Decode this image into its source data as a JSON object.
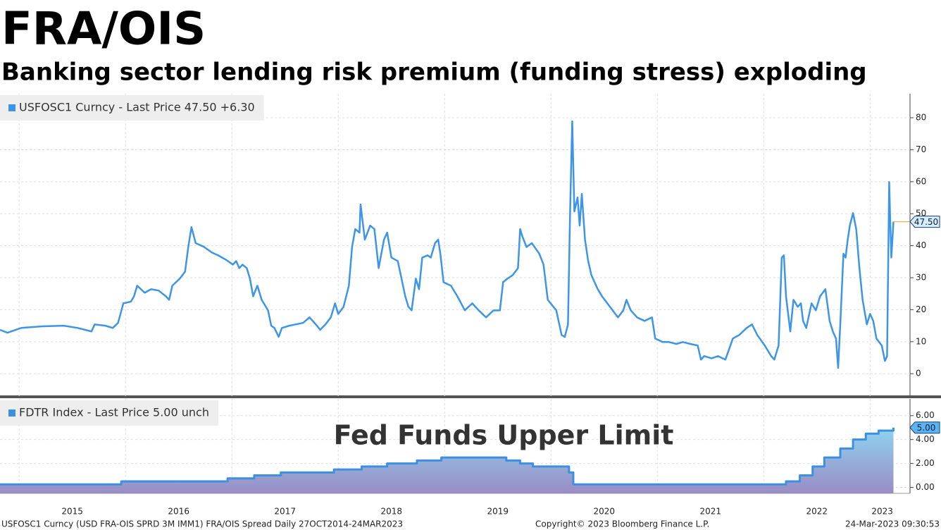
{
  "chart_data": [
    {
      "type": "line",
      "title": "FRA/OIS",
      "subtitle": "Banking sector lending risk premium (funding stress) exploding",
      "x": [
        2014.82,
        2014.89,
        2015.02,
        2015.22,
        2015.42,
        2015.55,
        2015.68,
        2015.71,
        2015.81,
        2015.88,
        2015.93,
        2015.98,
        2016.05,
        2016.08,
        2016.11,
        2016.18,
        2016.24,
        2016.31,
        2016.38,
        2016.41,
        2016.44,
        2016.51,
        2016.56,
        2016.59,
        2016.62,
        2016.66,
        2016.74,
        2016.81,
        2016.87,
        2016.94,
        2017.01,
        2017.04,
        2017.07,
        2017.1,
        2017.14,
        2017.17,
        2017.2,
        2017.24,
        2017.28,
        2017.34,
        2017.37,
        2017.4,
        2017.44,
        2017.47,
        2017.54,
        2017.6,
        2017.67,
        2017.73,
        2017.8,
        2017.83,
        2017.88,
        2017.93,
        2017.97,
        2018.0,
        2018.05,
        2018.1,
        2018.13,
        2018.16,
        2018.2,
        2018.21,
        2018.25,
        2018.3,
        2018.34,
        2018.38,
        2018.43,
        2018.46,
        2018.5,
        2018.56,
        2018.63,
        2018.66,
        2018.69,
        2018.73,
        2018.76,
        2018.79,
        2018.84,
        2018.87,
        2018.91,
        2018.94,
        2018.96,
        2018.99,
        2019.06,
        2019.12,
        2019.19,
        2019.26,
        2019.32,
        2019.39,
        2019.46,
        2019.52,
        2019.55,
        2019.59,
        2019.64,
        2019.69,
        2019.71,
        2019.73,
        2019.77,
        2019.82,
        2019.89,
        2019.93,
        2019.97,
        2020.05,
        2020.1,
        2020.13,
        2020.16,
        2020.18,
        2020.2,
        2020.22,
        2020.25,
        2020.27,
        2020.29,
        2020.32,
        2020.35,
        2020.38,
        2020.44,
        2020.48,
        2020.53,
        2020.58,
        2020.63,
        2020.68,
        2020.71,
        2020.75,
        2020.81,
        2020.88,
        2020.95,
        2020.98,
        2021.05,
        2021.11,
        2021.18,
        2021.24,
        2021.31,
        2021.38,
        2021.41,
        2021.44,
        2021.51,
        2021.57,
        2021.64,
        2021.71,
        2021.77,
        2021.84,
        2021.89,
        2021.94,
        2022.01,
        2022.07,
        2022.1,
        2022.14,
        2022.17,
        2022.19,
        2022.21,
        2022.25,
        2022.28,
        2022.32,
        2022.35,
        2022.37,
        2022.4,
        2022.45,
        2022.49,
        2022.53,
        2022.58,
        2022.62,
        2022.65,
        2022.68,
        2022.7,
        2022.72,
        2022.75,
        2022.77,
        2022.79,
        2022.81,
        2022.84,
        2022.87,
        2022.9,
        2022.93,
        2022.97,
        2023.0,
        2023.03,
        2023.06,
        2023.11,
        2023.14,
        2023.16,
        2023.18,
        2023.19,
        2023.2,
        2023.22
      ],
      "series": [
        {
          "name": "USFOSC1 Curncy - Last Price 47.50  +6.30",
          "color": "#3d95e8",
          "values": [
            13.7,
            12.8,
            14.3,
            14.8,
            15.0,
            14.3,
            13.2,
            15.4,
            15.0,
            14.3,
            15.9,
            22.0,
            22.5,
            24.2,
            27.5,
            25.3,
            26.4,
            26.0,
            24.2,
            23.1,
            27.5,
            29.7,
            31.9,
            39.6,
            45.8,
            40.8,
            39.6,
            37.9,
            37.0,
            35.7,
            34.1,
            35.2,
            33.0,
            34.1,
            33.0,
            29.7,
            24.2,
            27.5,
            23.1,
            19.8,
            15.0,
            14.3,
            11.5,
            14.3,
            15.0,
            15.4,
            15.9,
            17.6,
            15.0,
            13.7,
            15.4,
            17.6,
            22.0,
            18.7,
            20.9,
            27.5,
            39.6,
            45.2,
            44.1,
            52.9,
            41.9,
            46.3,
            45.2,
            33.0,
            41.9,
            44.1,
            36.3,
            35.2,
            24.2,
            20.9,
            19.8,
            29.7,
            26.4,
            36.3,
            37.0,
            36.3,
            40.8,
            41.9,
            37.5,
            28.6,
            27.5,
            24.2,
            19.8,
            22.0,
            19.8,
            17.6,
            19.8,
            19.8,
            28.6,
            29.7,
            30.8,
            33.0,
            45.2,
            43.0,
            39.6,
            40.8,
            37.5,
            34.1,
            23.1,
            19.8,
            12.1,
            11.5,
            15.4,
            50.7,
            78.9,
            50.7,
            55.1,
            46.3,
            56.2,
            41.9,
            35.2,
            30.8,
            26.4,
            24.2,
            22.0,
            19.8,
            17.6,
            19.8,
            23.1,
            19.8,
            17.6,
            16.5,
            17.6,
            11.0,
            9.9,
            9.9,
            9.3,
            9.9,
            9.3,
            8.8,
            4.4,
            5.5,
            4.8,
            5.5,
            4.4,
            11.0,
            12.1,
            14.3,
            15.4,
            12.1,
            8.8,
            5.5,
            4.4,
            8.8,
            36.3,
            37.0,
            24.2,
            13.2,
            23.1,
            20.9,
            22.0,
            16.5,
            14.3,
            22.0,
            19.8,
            24.2,
            26.4,
            16.5,
            13.2,
            11.0,
            1.8,
            15.4,
            37.5,
            36.3,
            41.9,
            46.3,
            50.2,
            45.2,
            33.0,
            23.1,
            15.4,
            18.7,
            16.5,
            11.0,
            8.8,
            4.0,
            5.5,
            59.9,
            47.4,
            36.3,
            47.5
          ]
        }
      ],
      "last_label": "47.50",
      "xlim": [
        2014.82,
        2023.23
      ],
      "xticks": [
        2015,
        2016,
        2017,
        2018,
        2019,
        2020,
        2021,
        2022,
        2023
      ],
      "ylim": [
        -7,
        87.5
      ],
      "yticks": [
        0,
        10,
        20,
        30,
        40,
        50,
        60,
        70,
        80
      ],
      "grid": true
    },
    {
      "type": "area",
      "annotation": "Fed Funds Upper Limit",
      "step": "after",
      "x": [
        2014.82,
        2015.96,
        2016.96,
        2017.21,
        2017.46,
        2017.96,
        2018.22,
        2018.46,
        2018.74,
        2018.97,
        2019.58,
        2019.71,
        2019.83,
        2020.17,
        2020.21,
        2022.21,
        2022.34,
        2022.46,
        2022.57,
        2022.72,
        2022.84,
        2022.96,
        2023.08,
        2023.22
      ],
      "series": [
        {
          "name": "FDTR Index - Last Price 5.00  unch",
          "color": "#3d8fe0",
          "values": [
            0.25,
            0.5,
            0.75,
            1.0,
            1.25,
            1.5,
            1.75,
            2.0,
            2.25,
            2.5,
            2.25,
            2.0,
            1.75,
            1.25,
            0.25,
            0.5,
            1.0,
            1.75,
            2.5,
            3.25,
            4.0,
            4.5,
            4.75,
            5.0
          ]
        }
      ],
      "last_label": "5.00",
      "xlim": [
        2014.82,
        2023.23
      ],
      "xticks": [
        2015,
        2016,
        2017,
        2018,
        2019,
        2020,
        2021,
        2022,
        2023
      ],
      "ylim": [
        -0.5,
        7.4
      ],
      "yticks": [
        {
          "value": 0,
          "label": "0.00"
        },
        {
          "value": 2,
          "label": "2.00"
        },
        {
          "value": 4,
          "label": "4.00"
        },
        {
          "value": 6,
          "label": "6.00"
        }
      ],
      "grid": true
    }
  ],
  "footer": [
    "USFOSC1 Curncy (USD FRA-OIS SPRD 3M IMM1) FRA/OIS Spread  Daily 27OCT2014-24MAR2023",
    "Copyright© 2023 Bloomberg Finance L.P.",
    "24-Mar-2023 09:30:53"
  ]
}
